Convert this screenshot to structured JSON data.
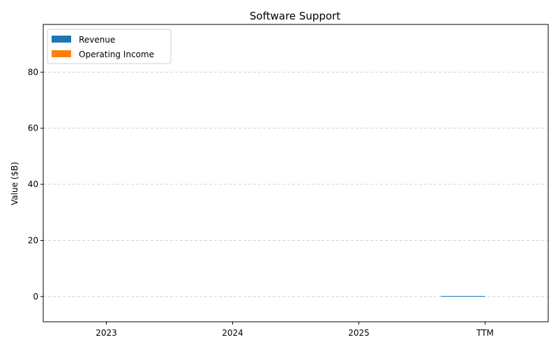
{
  "chart_data": {
    "type": "bar",
    "title": "Software Support",
    "xlabel": "",
    "ylabel": "Value ($B)",
    "categories": [
      "2023",
      "2024",
      "2025",
      "TTM"
    ],
    "series": [
      {
        "name": "Revenue",
        "color": "#1f77b4",
        "values": [
          0,
          0,
          0,
          0.2
        ]
      },
      {
        "name": "Operating Income",
        "color": "#ff7f0e",
        "values": [
          0,
          0,
          0,
          0
        ]
      }
    ],
    "ylim": [
      -9,
      97
    ],
    "yticks": [
      0,
      20,
      40,
      60,
      80
    ],
    "grid": "y-dashed",
    "legend": "top-left"
  }
}
